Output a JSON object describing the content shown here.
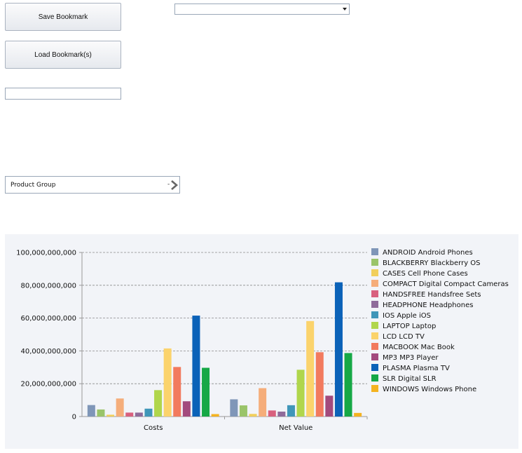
{
  "toolbar": {
    "save_label": "Save Bookmark",
    "load_label": "Load Bookmark(s)",
    "text_value": "",
    "dropdown_value": ""
  },
  "selector": {
    "label": "Product Group",
    "value": "-",
    "chevron_icon": "chevron-right-icon"
  },
  "chart_data": {
    "type": "bar",
    "categories": [
      "Costs",
      "Net Value"
    ],
    "ylim": [
      0,
      100000000000
    ],
    "yticks": [
      0,
      20000000000,
      40000000000,
      60000000000,
      80000000000,
      100000000000
    ],
    "ytick_labels": [
      "0",
      "20,000,000,000",
      "40,000,000,000",
      "60,000,000,000",
      "80,000,000,000",
      "100,000,000,000"
    ],
    "grid": true,
    "legend_position": "right",
    "series": [
      {
        "name": "ANDROID Android Phones",
        "color": "#7f96b8",
        "values": [
          7000000000,
          10500000000
        ]
      },
      {
        "name": "BLACKBERRY Blackberry OS",
        "color": "#9ac46a",
        "values": [
          4300000000,
          6800000000
        ]
      },
      {
        "name": "CASES Cell Phone Cases",
        "color": "#f1cf5c",
        "values": [
          1100000000,
          1600000000
        ]
      },
      {
        "name": "COMPACT Digital Compact Cameras",
        "color": "#f5ad7a",
        "values": [
          11000000000,
          17300000000
        ]
      },
      {
        "name": "HANDSFREE Handsfree Sets",
        "color": "#d8607e",
        "values": [
          2400000000,
          3700000000
        ]
      },
      {
        "name": "HEADPHONE Headphones",
        "color": "#8f6b9a",
        "values": [
          2400000000,
          3000000000
        ]
      },
      {
        "name": "IOS Apple iOS",
        "color": "#4096b9",
        "values": [
          4800000000,
          6900000000
        ]
      },
      {
        "name": "LAPTOP Laptop",
        "color": "#b0d64c",
        "values": [
          16100000000,
          28500000000
        ]
      },
      {
        "name": "LCD LCD TV",
        "color": "#fbd36c",
        "values": [
          41500000000,
          58200000000
        ]
      },
      {
        "name": "MACBOOK Mac Book",
        "color": "#f27a5e",
        "values": [
          30200000000,
          39200000000
        ]
      },
      {
        "name": "MP3 MP3 Player",
        "color": "#a34a7d",
        "values": [
          9300000000,
          12700000000
        ]
      },
      {
        "name": "PLASMA Plasma TV",
        "color": "#0b62b8",
        "values": [
          61500000000,
          81800000000
        ]
      },
      {
        "name": "SLR Digital SLR",
        "color": "#16a846",
        "values": [
          29700000000,
          38700000000
        ]
      },
      {
        "name": "WINDOWS Windows Phone",
        "color": "#f4b321",
        "values": [
          1500000000,
          2200000000
        ]
      }
    ]
  }
}
